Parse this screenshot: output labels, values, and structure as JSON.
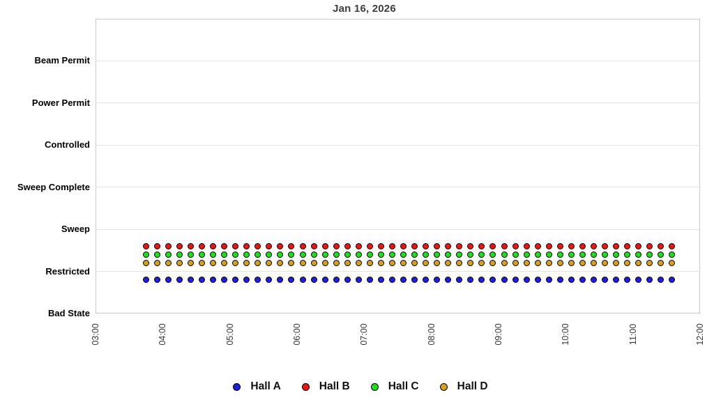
{
  "chart_data": {
    "type": "scatter",
    "title": "Jan 16, 2026",
    "x_axis": {
      "tick_labels": [
        "03:00",
        "04:00",
        "05:00",
        "06:00",
        "07:00",
        "08:00",
        "09:00",
        "10:00",
        "11:00",
        "12:00"
      ],
      "range_hours": [
        3,
        12
      ],
      "tick_label_rotation_deg": -90
    },
    "y_axis": {
      "categories_bottom_to_top": [
        "Bad State",
        "Restricted",
        "Sweep",
        "Sweep Complete",
        "Controlled",
        "Power Permit",
        "Beam Permit"
      ],
      "units_total": 7
    },
    "grid": {
      "band_color": "#f2f2f2",
      "line_color": "#e3e3e3",
      "border_color": "#c9c9c9",
      "gray_band_value_ranges": [
        [
          1,
          2
        ],
        [
          3,
          4
        ],
        [
          5,
          6
        ]
      ]
    },
    "times": [
      "03:45",
      "03:55",
      "04:05",
      "04:15",
      "04:25",
      "04:35",
      "04:45",
      "04:55",
      "05:05",
      "05:15",
      "05:25",
      "05:35",
      "05:45",
      "05:55",
      "06:05",
      "06:15",
      "06:25",
      "06:35",
      "06:45",
      "06:55",
      "07:05",
      "07:15",
      "07:25",
      "07:35",
      "07:45",
      "07:55",
      "08:05",
      "08:15",
      "08:25",
      "08:35",
      "08:45",
      "08:55",
      "09:05",
      "09:15",
      "09:25",
      "09:35",
      "09:45",
      "09:55",
      "10:05",
      "10:15",
      "10:25",
      "10:35",
      "10:45",
      "10:55",
      "11:05",
      "11:15",
      "11:25",
      "11:35"
    ],
    "series": [
      {
        "name": "Hall A",
        "color": "#1e1ee0",
        "state": "Restricted",
        "plot_offset": -0.2
      },
      {
        "name": "Hall B",
        "color": "#ee1414",
        "state": "Restricted",
        "plot_offset": 0.6
      },
      {
        "name": "Hall C",
        "color": "#1ce01c",
        "state": "Restricted",
        "plot_offset": 0.4
      },
      {
        "name": "Hall D",
        "color": "#d4a01e",
        "state": "Restricted",
        "plot_offset": 0.2
      }
    ],
    "legend": {
      "position": "bottom",
      "items": [
        "Hall A",
        "Hall B",
        "Hall C",
        "Hall D"
      ]
    }
  }
}
